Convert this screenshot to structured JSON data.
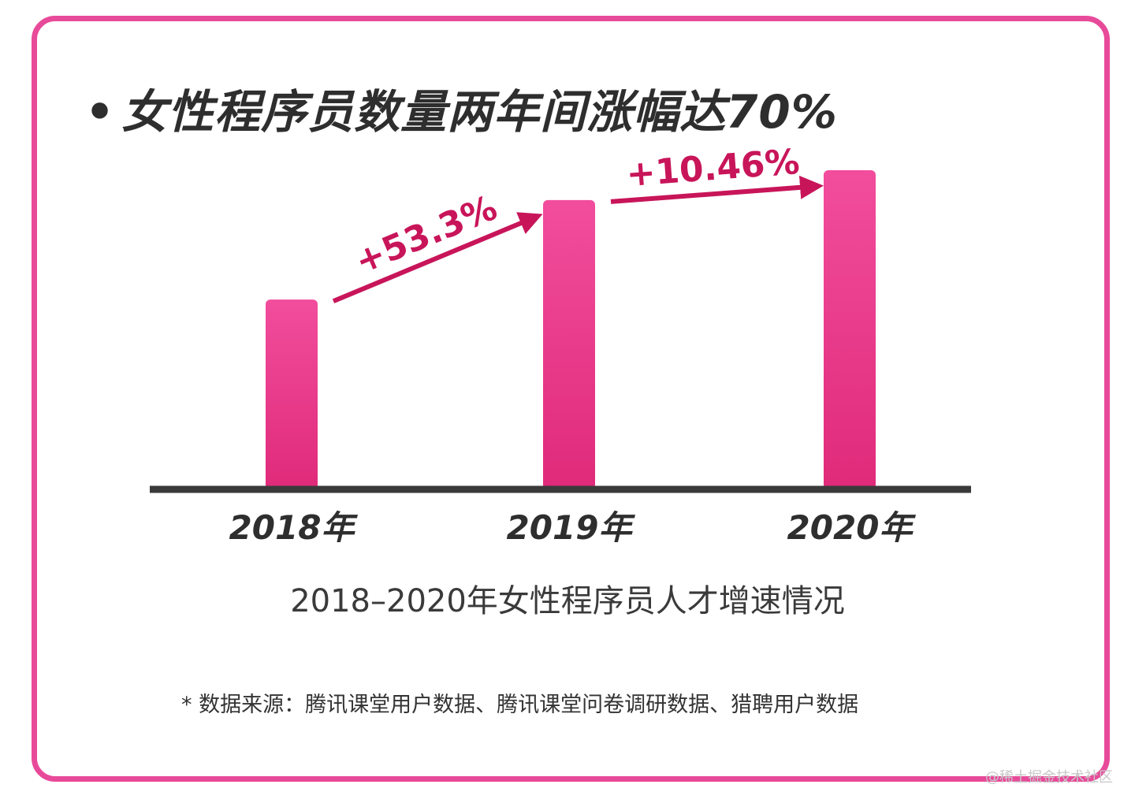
{
  "headline": "女性程序员数量两年间涨幅达70%",
  "bullet": "•",
  "chart_data": {
    "type": "bar",
    "categories": [
      "2018年",
      "2019年",
      "2020年"
    ],
    "values": [
      100,
      153.3,
      169.3
    ],
    "value_note": "relative index, 2018 = 100",
    "ylim": [
      0,
      190
    ],
    "annotations": [
      {
        "from": 0,
        "to": 1,
        "label": "+53.3%"
      },
      {
        "from": 1,
        "to": 2,
        "label": "+10.46%"
      }
    ],
    "title": "2018–2020年女性程序员人才增速情况",
    "xlabel": "",
    "ylabel": "",
    "grid": false
  },
  "caption": "2018–2020年女性程序员人才增速情况",
  "source": "* 数据来源：腾讯课堂用户数据、腾讯课堂问卷调研数据、猎聘用户数据",
  "watermark": "@稀土掘金技术社区",
  "colors": {
    "frame": "#e84a9a",
    "bar_top": "#f24d9d",
    "bar_bottom": "#e02a7a",
    "arrow": "#c8155a",
    "baseline": "#3a3a3a",
    "text": "#2e2e2e"
  }
}
